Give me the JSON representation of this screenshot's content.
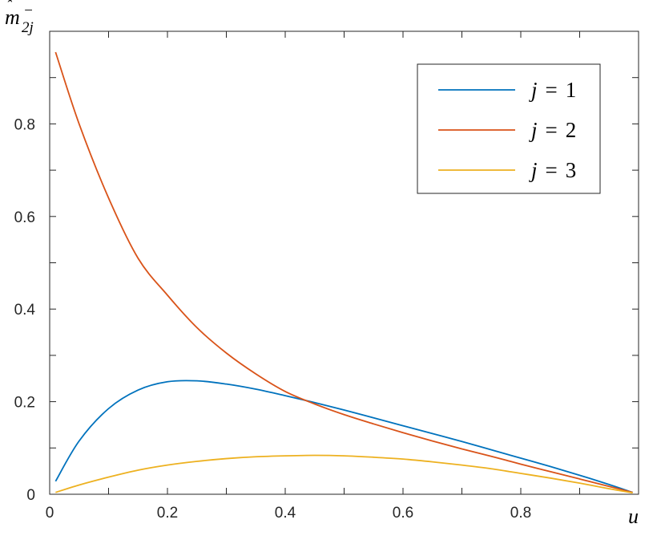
{
  "chart_data": {
    "type": "line",
    "title": "",
    "xlabel": "u",
    "ylabel": {
      "base": "m",
      "hat": "ˆ",
      "sup": "−",
      "sub": "2j"
    },
    "xlim": [
      0,
      1
    ],
    "ylim": [
      0,
      1
    ],
    "xticks": [
      0,
      0.2,
      0.4,
      0.6,
      0.8
    ],
    "xtick_labels": [
      "0",
      "0.2",
      "0.4",
      "0.6",
      "0.8"
    ],
    "yticks": [
      0,
      0.2,
      0.4,
      0.6,
      0.8
    ],
    "ytick_labels": [
      "0",
      "0.2",
      "0.4",
      "0.6",
      "0.8"
    ],
    "grid": false,
    "box": true,
    "legend_position": "top-right",
    "x": [
      0.01,
      0.05,
      0.1,
      0.15,
      0.2,
      0.25,
      0.3,
      0.35,
      0.4,
      0.45,
      0.5,
      0.55,
      0.6,
      0.65,
      0.7,
      0.75,
      0.8,
      0.85,
      0.9,
      0.95,
      0.99
    ],
    "series": [
      {
        "name": "j = 1",
        "label_var": "j",
        "label_op": "=",
        "label_num": "1",
        "color": "#0072BD",
        "values": [
          0.028,
          0.115,
          0.185,
          0.225,
          0.243,
          0.245,
          0.238,
          0.227,
          0.213,
          0.198,
          0.182,
          0.165,
          0.148,
          0.131,
          0.114,
          0.096,
          0.078,
          0.06,
          0.041,
          0.021,
          0.004
        ]
      },
      {
        "name": "j = 2",
        "label_var": "j",
        "label_op": "=",
        "label_num": "2",
        "color": "#D95319",
        "values": [
          0.955,
          0.8,
          0.64,
          0.51,
          0.43,
          0.36,
          0.305,
          0.26,
          0.222,
          0.195,
          0.172,
          0.152,
          0.133,
          0.115,
          0.098,
          0.082,
          0.065,
          0.049,
          0.033,
          0.017,
          0.004
        ]
      },
      {
        "name": "j = 3",
        "label_var": "j",
        "label_op": "=",
        "label_num": "3",
        "color": "#EDB120",
        "values": [
          0.004,
          0.02,
          0.037,
          0.052,
          0.063,
          0.071,
          0.077,
          0.081,
          0.083,
          0.084,
          0.083,
          0.08,
          0.076,
          0.07,
          0.063,
          0.055,
          0.045,
          0.035,
          0.024,
          0.012,
          0.003
        ]
      }
    ]
  }
}
